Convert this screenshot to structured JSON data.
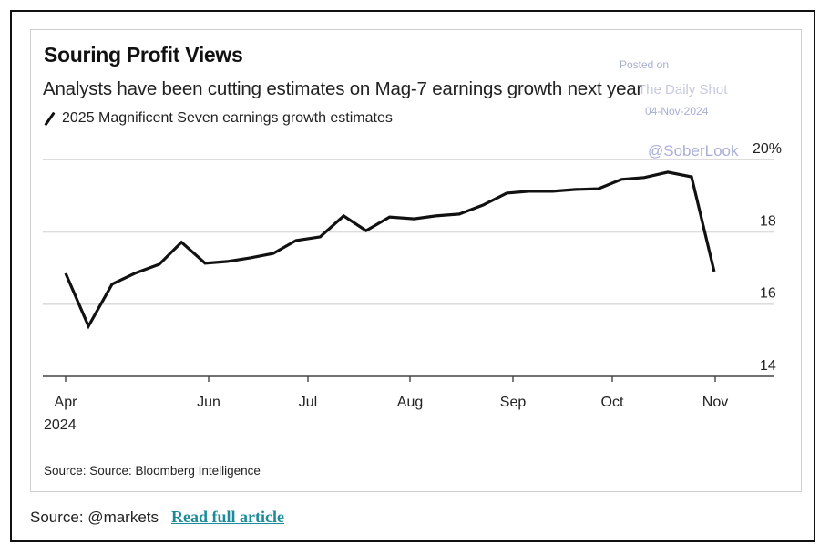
{
  "header": {
    "title": "Souring Profit Views",
    "subtitle": "Analysts have been cutting estimates on Mag-7 earnings growth next year",
    "legend_label": "2025 Magnificent Seven earnings growth estimates"
  },
  "watermark": {
    "line1": "Posted on",
    "line2": "The Daily Shot",
    "line3": "04-Nov-2024",
    "line4": "@SoberLook"
  },
  "source_inner": "Source: Source: Bloomberg Intelligence",
  "footer": {
    "source_label": "Source: @markets",
    "link_label": "Read full article",
    "link_color": "#1b8a99"
  },
  "chart_data": {
    "type": "line",
    "title": "Souring Profit Views",
    "subtitle": "Analysts have been cutting estimates on Mag-7 earnings growth next year",
    "xlabel": "",
    "ylabel": "",
    "y_unit": "%",
    "ylim": [
      14,
      20
    ],
    "yticks": [
      {
        "value": 20,
        "label": "20%"
      },
      {
        "value": 18,
        "label": "18"
      },
      {
        "value": 16,
        "label": "16"
      },
      {
        "value": 14,
        "label": "14"
      }
    ],
    "y_axis_side": "right",
    "grid": true,
    "xticks": [
      {
        "month_index": 0,
        "label": "Apr",
        "sublabel": "2024"
      },
      {
        "month_index": 2,
        "label": "Jun",
        "sublabel": ""
      },
      {
        "month_index": 3,
        "label": "Jul",
        "sublabel": ""
      },
      {
        "month_index": 4,
        "label": "Aug",
        "sublabel": ""
      },
      {
        "month_index": 5,
        "label": "Sep",
        "sublabel": ""
      },
      {
        "month_index": 6,
        "label": "Oct",
        "sublabel": ""
      },
      {
        "month_index": 7,
        "label": "Nov",
        "sublabel": ""
      }
    ],
    "x_note": "x is months since Apr 2024 (0 = Apr, 7 = Nov)",
    "series": [
      {
        "name": "2025 Magnificent Seven earnings growth estimates",
        "color": "#111111",
        "points": [
          {
            "x": 0.0,
            "y": 16.85
          },
          {
            "x": 0.32,
            "y": 15.39
          },
          {
            "x": 0.65,
            "y": 16.55
          },
          {
            "x": 0.97,
            "y": 16.85
          },
          {
            "x": 1.31,
            "y": 17.1
          },
          {
            "x": 1.62,
            "y": 17.71
          },
          {
            "x": 1.95,
            "y": 17.13
          },
          {
            "x": 2.19,
            "y": 17.18
          },
          {
            "x": 2.42,
            "y": 17.28
          },
          {
            "x": 2.65,
            "y": 17.4
          },
          {
            "x": 2.88,
            "y": 17.76
          },
          {
            "x": 3.12,
            "y": 17.86
          },
          {
            "x": 3.35,
            "y": 18.44
          },
          {
            "x": 3.57,
            "y": 18.03
          },
          {
            "x": 3.8,
            "y": 18.41
          },
          {
            "x": 4.04,
            "y": 18.36
          },
          {
            "x": 4.25,
            "y": 18.44
          },
          {
            "x": 4.48,
            "y": 18.49
          },
          {
            "x": 4.71,
            "y": 18.74
          },
          {
            "x": 4.94,
            "y": 19.07
          },
          {
            "x": 5.16,
            "y": 19.12
          },
          {
            "x": 5.4,
            "y": 19.12
          },
          {
            "x": 5.63,
            "y": 19.17
          },
          {
            "x": 5.86,
            "y": 19.19
          },
          {
            "x": 6.09,
            "y": 19.45
          },
          {
            "x": 6.31,
            "y": 19.5
          },
          {
            "x": 6.54,
            "y": 19.65
          },
          {
            "x": 6.77,
            "y": 19.52
          },
          {
            "x": 6.99,
            "y": 16.9
          }
        ]
      }
    ],
    "legend_position": "top-left",
    "source": "Source: Source: Bloomberg Intelligence"
  }
}
